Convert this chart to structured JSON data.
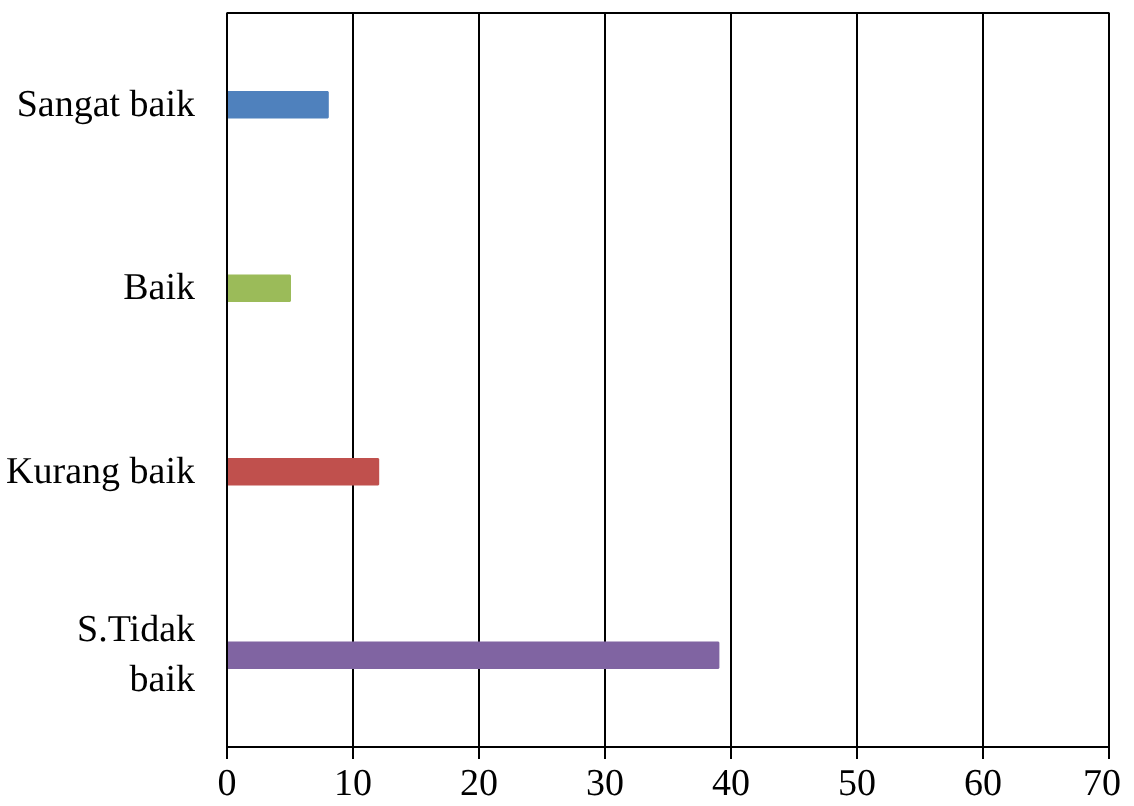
{
  "chart_data": {
    "type": "bar",
    "orientation": "horizontal",
    "categories": [
      "Sangat baik",
      "Baik",
      "Kurang baik",
      "S.Tidak baik"
    ],
    "values": [
      8,
      5,
      12,
      39
    ],
    "colors": [
      "#4f81bd",
      "#9bbb59",
      "#c0504d",
      "#8064a2"
    ],
    "xlim": [
      0,
      70
    ],
    "xticks": [
      0,
      10,
      20,
      30,
      40,
      50,
      60,
      70
    ],
    "grid": "x"
  }
}
